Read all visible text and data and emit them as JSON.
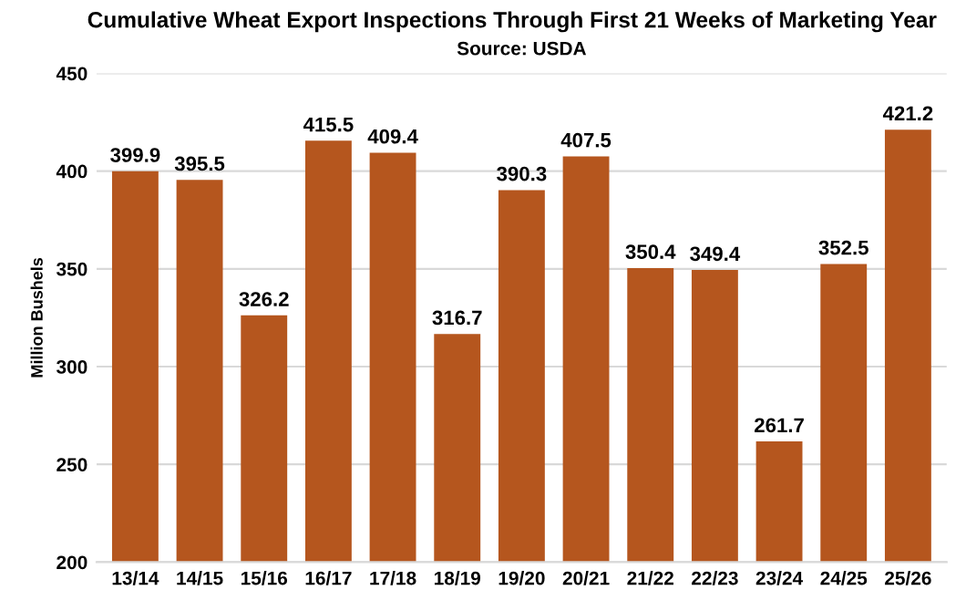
{
  "chart_data": {
    "type": "bar",
    "title": "Cumulative Wheat Export Inspections Through First 21 Weeks of Marketing Year",
    "subtitle": "Source: USDA",
    "ylabel": "Million Bushels",
    "categories": [
      "13/14",
      "14/15",
      "15/16",
      "16/17",
      "17/18",
      "18/19",
      "19/20",
      "20/21",
      "21/22",
      "22/23",
      "23/24",
      "24/25",
      "25/26"
    ],
    "values": [
      399.9,
      395.5,
      326.2,
      415.5,
      409.4,
      316.7,
      390.3,
      407.5,
      350.4,
      349.4,
      261.7,
      352.5,
      421.2
    ],
    "color": "#b5561e",
    "ylim": [
      200,
      450
    ],
    "yticks": [
      200,
      250,
      300,
      350,
      400,
      450
    ],
    "grid": "y",
    "data_labels": true,
    "legend": false
  }
}
